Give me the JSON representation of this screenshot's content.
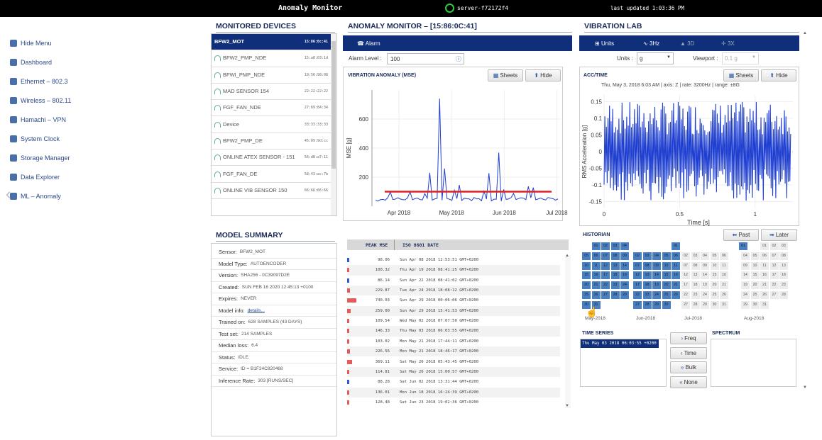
{
  "topbar": {
    "title": "Anomaly Monitor",
    "server": "server-f72172f4",
    "updated": "last updated 1:03:36 PM"
  },
  "sidebar": {
    "items": [
      {
        "label": "Hide Menu",
        "icon": "gear-icon"
      },
      {
        "label": "Dashboard",
        "icon": "home-icon"
      },
      {
        "label": "Ethernet – 802.3",
        "icon": "ethernet-icon"
      },
      {
        "label": "Wireless – 802.11",
        "icon": "wifi-icon"
      },
      {
        "label": "Hamachi – VPN",
        "icon": "vpn-icon"
      },
      {
        "label": "System Clock",
        "icon": "clock-icon"
      },
      {
        "label": "Storage Manager",
        "icon": "storage-icon"
      },
      {
        "label": "Data Explorer",
        "icon": "explorer-icon"
      },
      {
        "label": "ML – Anomaly",
        "icon": "ml-icon"
      }
    ]
  },
  "devices": {
    "header": "MONITORED DEVICES",
    "items": [
      {
        "name": "BFW2_MOT",
        "mac": "15:86:0c:41",
        "selected": true
      },
      {
        "name": "BFW2_PMP_NDE",
        "mac": "15:a8:03:1d"
      },
      {
        "name": "BFWI_PMP_NDE",
        "mac": "19:56:98:08"
      },
      {
        "name": "MAD SENSOR 154",
        "mac": "22:22:22:22"
      },
      {
        "name": "FGF_FAN_NDE",
        "mac": "27:69:84:34"
      },
      {
        "name": "Device",
        "mac": "33:33:33:33"
      },
      {
        "name": "BFW2_PMP_DE",
        "mac": "45:09:9d:cc"
      },
      {
        "name": "ONLINE ATEX SENSOR - 151",
        "mac": "56:d8:a7:11"
      },
      {
        "name": "FGF_FAN_DE",
        "mac": "58:43:ac:7b"
      },
      {
        "name": "ONLINE VIB SENSOR 150",
        "mac": "66:66:66:66"
      }
    ]
  },
  "model_summary": {
    "header": "MODEL SUMMARY",
    "rows": [
      {
        "k": "Sensor:",
        "v": "BFW2_MOT"
      },
      {
        "k": "Model Type:",
        "v": "AUTOENCODER"
      },
      {
        "k": "Version:",
        "v": "SHA256 - 0C39097D2E"
      },
      {
        "k": "Created:",
        "v": "SUN FEB 16 2020 12:45:13 +0100"
      },
      {
        "k": "Expires:",
        "v": "NEVER"
      },
      {
        "k": "Model info:",
        "v": "details...",
        "link": true
      },
      {
        "k": "Trained on:",
        "v": "628 SAMPLES (43 DAYS)"
      },
      {
        "k": "Test set:",
        "v": "214 SAMPLES"
      },
      {
        "k": "Median loss:",
        "v": "6.4"
      },
      {
        "k": "Status:",
        "v": "IDLE."
      },
      {
        "k": "Service:",
        "v": "ID = B1F24C820468"
      },
      {
        "k": "Inference Rate:",
        "v": "303     [RUNS/SEC]"
      }
    ]
  },
  "anomaly": {
    "header": "ANOMALY MONITOR – [15:86:0C:41]",
    "tab": "Alarm",
    "alarm_label": "Alarm Level :",
    "alarm_value": "100",
    "plot_title": "VIBRATION ANOMALY (MSE)",
    "sheets": "Sheets",
    "hide": "Hide"
  },
  "table": {
    "col_peak": "PEAK MSE",
    "col_date": "ISO 8601 DATE",
    "rows": [
      {
        "peak": "98.06",
        "date": "Sun Apr 08 2018 12:53:51 GMT+0200",
        "color": "#3355dd",
        "w": 3
      },
      {
        "peak": "100.32",
        "date": "Thu Apr 19 2018 08:41:25 GMT+0200",
        "color": "#e85a5a",
        "w": 3
      },
      {
        "peak": "86.14",
        "date": "Sun Apr 22 2018 08:41:02 GMT+0200",
        "color": "#3355dd",
        "w": 3
      },
      {
        "peak": "229.87",
        "date": "Tue Apr 24 2018 18:08:12 GMT+0200",
        "color": "#e85a5a",
        "w": 4
      },
      {
        "peak": "740.03",
        "date": "Sun Apr 29 2018 00:06:06 GMT+0200",
        "color": "#e85a5a",
        "w": 13
      },
      {
        "peak": "259.00",
        "date": "Sun Apr 29 2018 15:41:53 GMT+0200",
        "color": "#e85a5a",
        "w": 5
      },
      {
        "peak": "109.54",
        "date": "Wed May 02 2018 07:07:50 GMT+0200",
        "color": "#e85a5a",
        "w": 3
      },
      {
        "peak": "146.33",
        "date": "Thu May 03 2018 06:03:55 GMT+0200",
        "color": "#e85a5a",
        "w": 3
      },
      {
        "peak": "103.02",
        "date": "Mon May 21 2018 17:44:11 GMT+0200",
        "color": "#e85a5a",
        "w": 3
      },
      {
        "peak": "226.56",
        "date": "Mon May 21 2018 18:46:17 GMT+0200",
        "color": "#e85a5a",
        "w": 4
      },
      {
        "peak": "369.11",
        "date": "Sat May 26 2018 05:43:45 GMT+0200",
        "color": "#e85a5a",
        "w": 7
      },
      {
        "peak": "114.81",
        "date": "Sat May 26 2018 15:00:57 GMT+0200",
        "color": "#e85a5a",
        "w": 3
      },
      {
        "peak": "88.28",
        "date": "Sat Jun 02 2018 13:31:44 GMT+0200",
        "color": "#3355dd",
        "w": 3
      },
      {
        "peak": "136.01",
        "date": "Mon Jun 18 2018 16:24:39 GMT+0200",
        "color": "#e85a5a",
        "w": 3
      },
      {
        "peak": "128.48",
        "date": "Sat Jun 23 2018 19:02:36 GMT+0200",
        "color": "#e85a5a",
        "w": 3
      }
    ]
  },
  "vibration": {
    "header": "VIBRATION LAB",
    "tabs": [
      "Units",
      "3Hz",
      "3D",
      "3X"
    ],
    "units_label": "Units :",
    "units_value": "g",
    "viewport_label": "Viewport :",
    "viewport_value": "0.1 g",
    "plot_title": "ACC/TIME",
    "plot_subtitle": "Thu, May 3, 2018 6:03 AM | axis: Z | rate: 3200Hz | range: ±8G",
    "sheets": "Sheets",
    "hide": "Hide"
  },
  "historian": {
    "header": "HISTORIAN",
    "past": "Past",
    "later": "Later",
    "months": [
      "May-2018",
      "Jun-2018",
      "Jul-2018",
      "Aug-2018"
    ]
  },
  "timeseries": {
    "header": "TIME SERIES",
    "item": "Thu May 03 2018 06:03:55 +0200",
    "buttons": [
      "Freq",
      "Time",
      "Bulk",
      "None"
    ],
    "spectrum": "SPECTRUM"
  },
  "chart_data": [
    {
      "type": "line",
      "title": "VIBRATION ANOMALY (MSE)",
      "ylabel": "MSE [g]",
      "xlabel": "",
      "ylim": [
        0,
        800
      ],
      "y_ticks": [
        200,
        400,
        600
      ],
      "x_ticks": [
        "Apr 2018",
        "May 2018",
        "Jun 2018",
        "Jul 2018"
      ],
      "threshold": 100,
      "series": [
        {
          "values": [
            40,
            45,
            42,
            98,
            48,
            50,
            44,
            100,
            52,
            46,
            86,
            230,
            50,
            740,
            259,
            48,
            110,
            146,
            55,
            50,
            60,
            52,
            103,
            227,
            48,
            369,
            115,
            50,
            88,
            52,
            55,
            136,
            128,
            50,
            48,
            60,
            52,
            50
          ]
        }
      ]
    },
    {
      "type": "line",
      "title": "ACC/TIME",
      "subtitle": "Thu, May 3, 2018 6:03 AM | axis: Z | rate: 3200Hz | range: ±8G",
      "xlabel": "Time [s]",
      "ylabel": "RMS Acceleration [g]",
      "xlim": [
        0,
        1.25
      ],
      "ylim": [
        -0.17,
        0.17
      ],
      "x_ticks": [
        "0",
        "0.5",
        "1"
      ],
      "y_ticks": [
        "0.15",
        "0.1",
        "0.05",
        "0",
        "-0.05",
        "-0.1",
        "-0.15"
      ]
    }
  ]
}
